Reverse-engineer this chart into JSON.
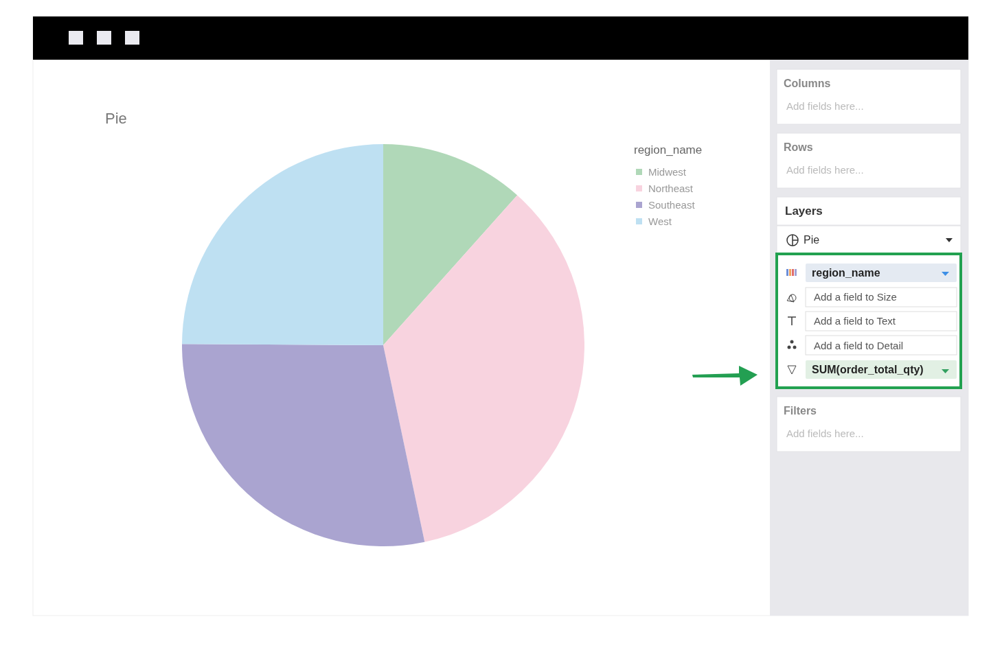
{
  "chart_data": [
    {
      "type": "pie",
      "title": "Pie",
      "legend_title": "region_name",
      "legend": "top right",
      "categories": [
        "Midwest",
        "Northeast",
        "Southeast",
        "West"
      ],
      "values": [
        11.6,
        35.1,
        28.4,
        24.9
      ],
      "colors": [
        "#b0d8b8",
        "#f8d3df",
        "#aaa4d0",
        "#bee0f2"
      ]
    },
    {
      "type": "other",
      "annotations": [
        "Columns",
        "Add fields here...",
        "Rows",
        "Add fields here...",
        "Layers",
        "Pie",
        "region_name",
        "Add a field to Size",
        "Add a field to Text",
        "Add a field to Detail",
        "SUM(order_total_qty)",
        "Filters",
        "Add fields here..."
      ]
    }
  ]
}
